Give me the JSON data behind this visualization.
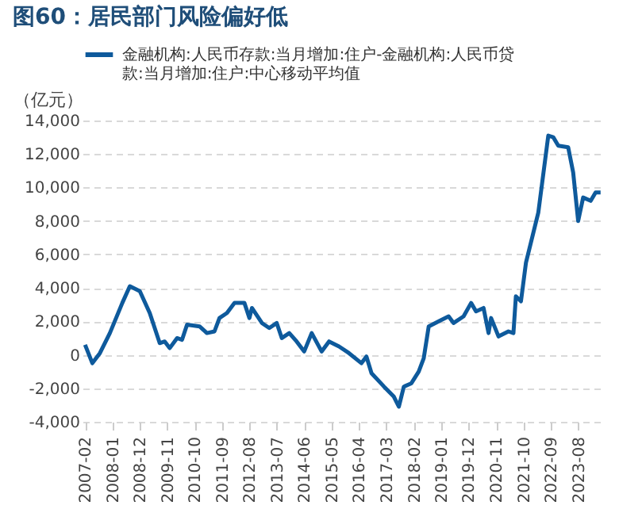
{
  "chart_data": {
    "type": "line",
    "title": "图60：居民部门风险偏好低",
    "ylabel": "（亿元）",
    "x": [
      "2007-02",
      "2007-05",
      "2007-08",
      "2007-12",
      "2008-05",
      "2008-08",
      "2008-12",
      "2009-04",
      "2009-08",
      "2009-10",
      "2009-12",
      "2010-03",
      "2010-05",
      "2010-07",
      "2010-12",
      "2011-03",
      "2011-06",
      "2011-08",
      "2011-11",
      "2012-02",
      "2012-06",
      "2012-08",
      "2012-09",
      "2013-01",
      "2013-04",
      "2013-07",
      "2013-09",
      "2013-12",
      "2014-03",
      "2014-06",
      "2014-09",
      "2015-01",
      "2015-04",
      "2015-08",
      "2015-12",
      "2016-05",
      "2016-07",
      "2016-09",
      "2017-02",
      "2017-06",
      "2017-08",
      "2017-10",
      "2018-01",
      "2018-04",
      "2018-06",
      "2018-08",
      "2018-12",
      "2019-04",
      "2019-06",
      "2019-10",
      "2020-01",
      "2020-03",
      "2020-06",
      "2020-08",
      "2020-09",
      "2020-12",
      "2021-04",
      "2021-06",
      "2021-07",
      "2021-09",
      "2021-11",
      "2022-04",
      "2022-08",
      "2022-10",
      "2022-12",
      "2023-04",
      "2023-06",
      "2023-08",
      "2023-10",
      "2024-01",
      "2024-03",
      "2024-05"
    ],
    "series": [
      {
        "name": "金融机构:人民币存款:当月增加:住户-金融机构:人民币贷款:当月增加:住户:中心移动平均值",
        "color": "#0e5a9c",
        "values": [
          600,
          -500,
          100,
          1300,
          3100,
          4100,
          3800,
          2500,
          700,
          800,
          400,
          1000,
          900,
          1800,
          1700,
          1300,
          1400,
          2200,
          2500,
          3100,
          3100,
          2200,
          2800,
          1900,
          1600,
          1900,
          1000,
          1300,
          800,
          200,
          1300,
          200,
          800,
          500,
          100,
          -500,
          -100,
          -1100,
          -1900,
          -2500,
          -3100,
          -1900,
          -1700,
          -1000,
          -200,
          1700,
          2000,
          2300,
          1900,
          2300,
          3100,
          2600,
          2800,
          1300,
          2200,
          1100,
          1400,
          1300,
          3500,
          3200,
          5500,
          8500,
          13100,
          13000,
          12500,
          12400,
          10900,
          8000,
          9400,
          9200,
          9700,
          9700
        ]
      }
    ],
    "xlim": [
      "2007-01",
      "2024-06"
    ],
    "xticks": [
      "2007-02",
      "2008-01",
      "2008-12",
      "2009-11",
      "2010-10",
      "2011-09",
      "2012-08",
      "2013-07",
      "2014-06",
      "2015-05",
      "2016-04",
      "2017-03",
      "2018-02",
      "2019-01",
      "2019-12",
      "2020-11",
      "2021-10",
      "2022-09",
      "2023-08"
    ],
    "ylim": [
      -4000,
      14000
    ],
    "yticks": [
      {
        "value": -4000,
        "label": "-4,000"
      },
      {
        "value": -2000,
        "label": "-2,000"
      },
      0,
      {
        "value": 2000,
        "label": "2,000"
      },
      {
        "value": 4000,
        "label": "4,000"
      },
      {
        "value": 6000,
        "label": "6,000"
      },
      {
        "value": 8000,
        "label": "8,000"
      },
      {
        "value": 10000,
        "label": "10,000"
      },
      {
        "value": 12000,
        "label": "12,000"
      },
      {
        "value": 14000,
        "label": "14,000"
      }
    ],
    "grid": "y",
    "legend": "top",
    "line_style": "solid",
    "marker": "none"
  }
}
